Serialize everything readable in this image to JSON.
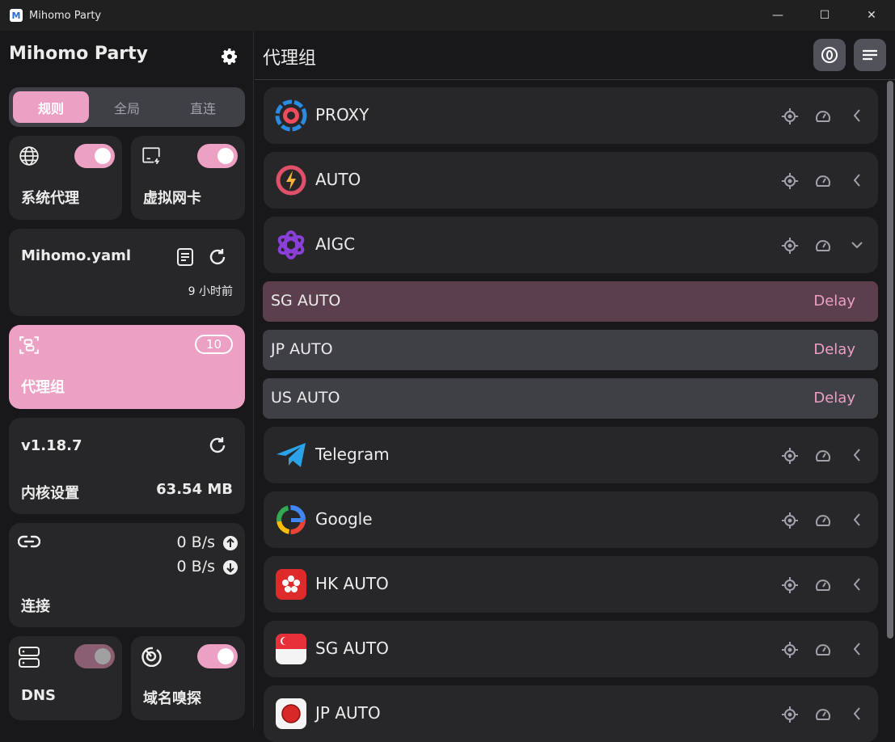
{
  "window": {
    "title": "Mihomo Party",
    "minimize": "—",
    "maximize": "☐",
    "close": "✕"
  },
  "sidebar": {
    "brand": "Mihomo Party",
    "modes": [
      "规则",
      "全局",
      "直连"
    ],
    "active_mode": "规则",
    "system_proxy": {
      "label": "系统代理",
      "enabled": true
    },
    "tun": {
      "label": "虚拟网卡",
      "enabled": true
    },
    "profile": {
      "name": "Mihomo.yaml",
      "updated": "9 小时前"
    },
    "proxy_groups": {
      "label": "代理组",
      "count": "10"
    },
    "core": {
      "version": "v1.18.7",
      "label": "内核设置",
      "memory": "63.54 MB"
    },
    "connections": {
      "label": "连接",
      "upload": "0 B/s",
      "download": "0 B/s"
    },
    "dns": {
      "label": "DNS",
      "enabled": true,
      "disabled_look": true
    },
    "sniff": {
      "label": "域名嗅探",
      "enabled": true
    }
  },
  "main": {
    "title": "代理组",
    "groups": [
      {
        "name": "PROXY",
        "icon": "proxy-icon",
        "expanded": false
      },
      {
        "name": "AUTO",
        "icon": "auto-icon",
        "expanded": false
      },
      {
        "name": "AIGC",
        "icon": "openai-icon",
        "expanded": true
      },
      {
        "name": "Telegram",
        "icon": "telegram-icon",
        "expanded": false
      },
      {
        "name": "Google",
        "icon": "google-icon",
        "expanded": false
      },
      {
        "name": "HK AUTO",
        "icon": "hongkong-flag-icon",
        "expanded": false
      },
      {
        "name": "SG AUTO",
        "icon": "singapore-flag-icon",
        "expanded": false
      },
      {
        "name": "JP AUTO",
        "icon": "japan-flag-icon",
        "expanded": false
      }
    ],
    "aigc_proxies": [
      {
        "name": "SG AUTO",
        "delay": "Delay",
        "selected": true
      },
      {
        "name": "JP AUTO",
        "delay": "Delay",
        "selected": false
      },
      {
        "name": "US AUTO",
        "delay": "Delay",
        "selected": false
      }
    ]
  },
  "colors": {
    "accent": "#eca0c4",
    "card": "#27272a",
    "background": "#18181b"
  }
}
